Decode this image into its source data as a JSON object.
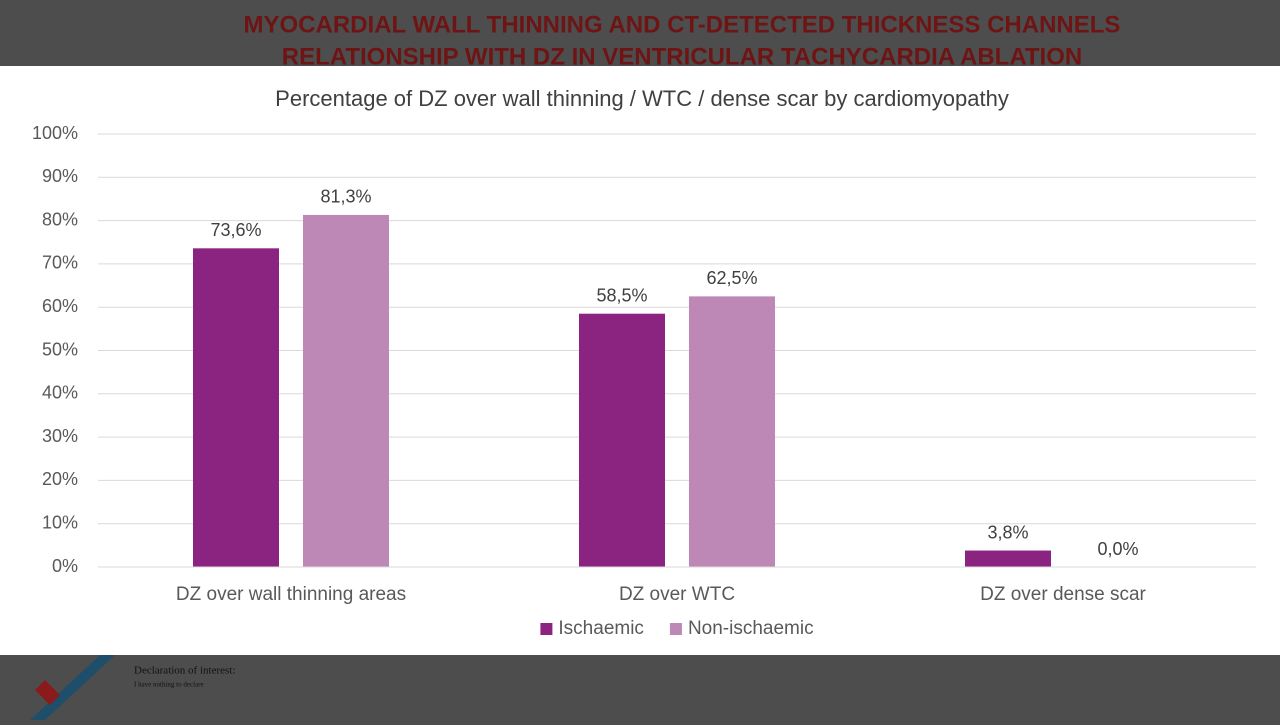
{
  "header": {
    "title_lines": [
      "MYOCARDIAL WALL THINNING AND CT-DETECTED THICKNESS CHANNELS",
      "RELATIONSHIP WITH DZ IN VENTRICULAR TACHYCARDIA ABLATION"
    ]
  },
  "footer": {
    "heading": "Declaration of interest:",
    "text": "I have nothing to declare"
  },
  "chart_data": {
    "type": "bar",
    "title": "Percentage of DZ over wall thinning / WTC / dense scar by cardiomyopathy",
    "categories": [
      "DZ over wall thinning areas",
      "DZ over WTC",
      "DZ over dense scar"
    ],
    "series": [
      {
        "name": "Ischaemic",
        "color": "#8b2381",
        "values": [
          73.6,
          58.5,
          3.8
        ],
        "value_labels": [
          "73,6%",
          "58,5%",
          "3,8%"
        ]
      },
      {
        "name": "Non-ischaemic",
        "color": "#bd88b6",
        "values": [
          81.3,
          62.5,
          0.0
        ],
        "value_labels": [
          "81,3%",
          "62,5%",
          "0,0%"
        ]
      }
    ],
    "ylim": [
      0,
      100
    ],
    "yticks": [
      {
        "value": 0,
        "label": "0%"
      },
      {
        "value": 10,
        "label": "10%"
      },
      {
        "value": 20,
        "label": "20%"
      },
      {
        "value": 30,
        "label": "30%"
      },
      {
        "value": 40,
        "label": "40%"
      },
      {
        "value": 50,
        "label": "50%"
      },
      {
        "value": 60,
        "label": "60%"
      },
      {
        "value": 70,
        "label": "70%"
      },
      {
        "value": 80,
        "label": "80%"
      },
      {
        "value": 90,
        "label": "90%"
      },
      {
        "value": 100,
        "label": "100%"
      }
    ],
    "grid": true,
    "legend": "bottom"
  }
}
